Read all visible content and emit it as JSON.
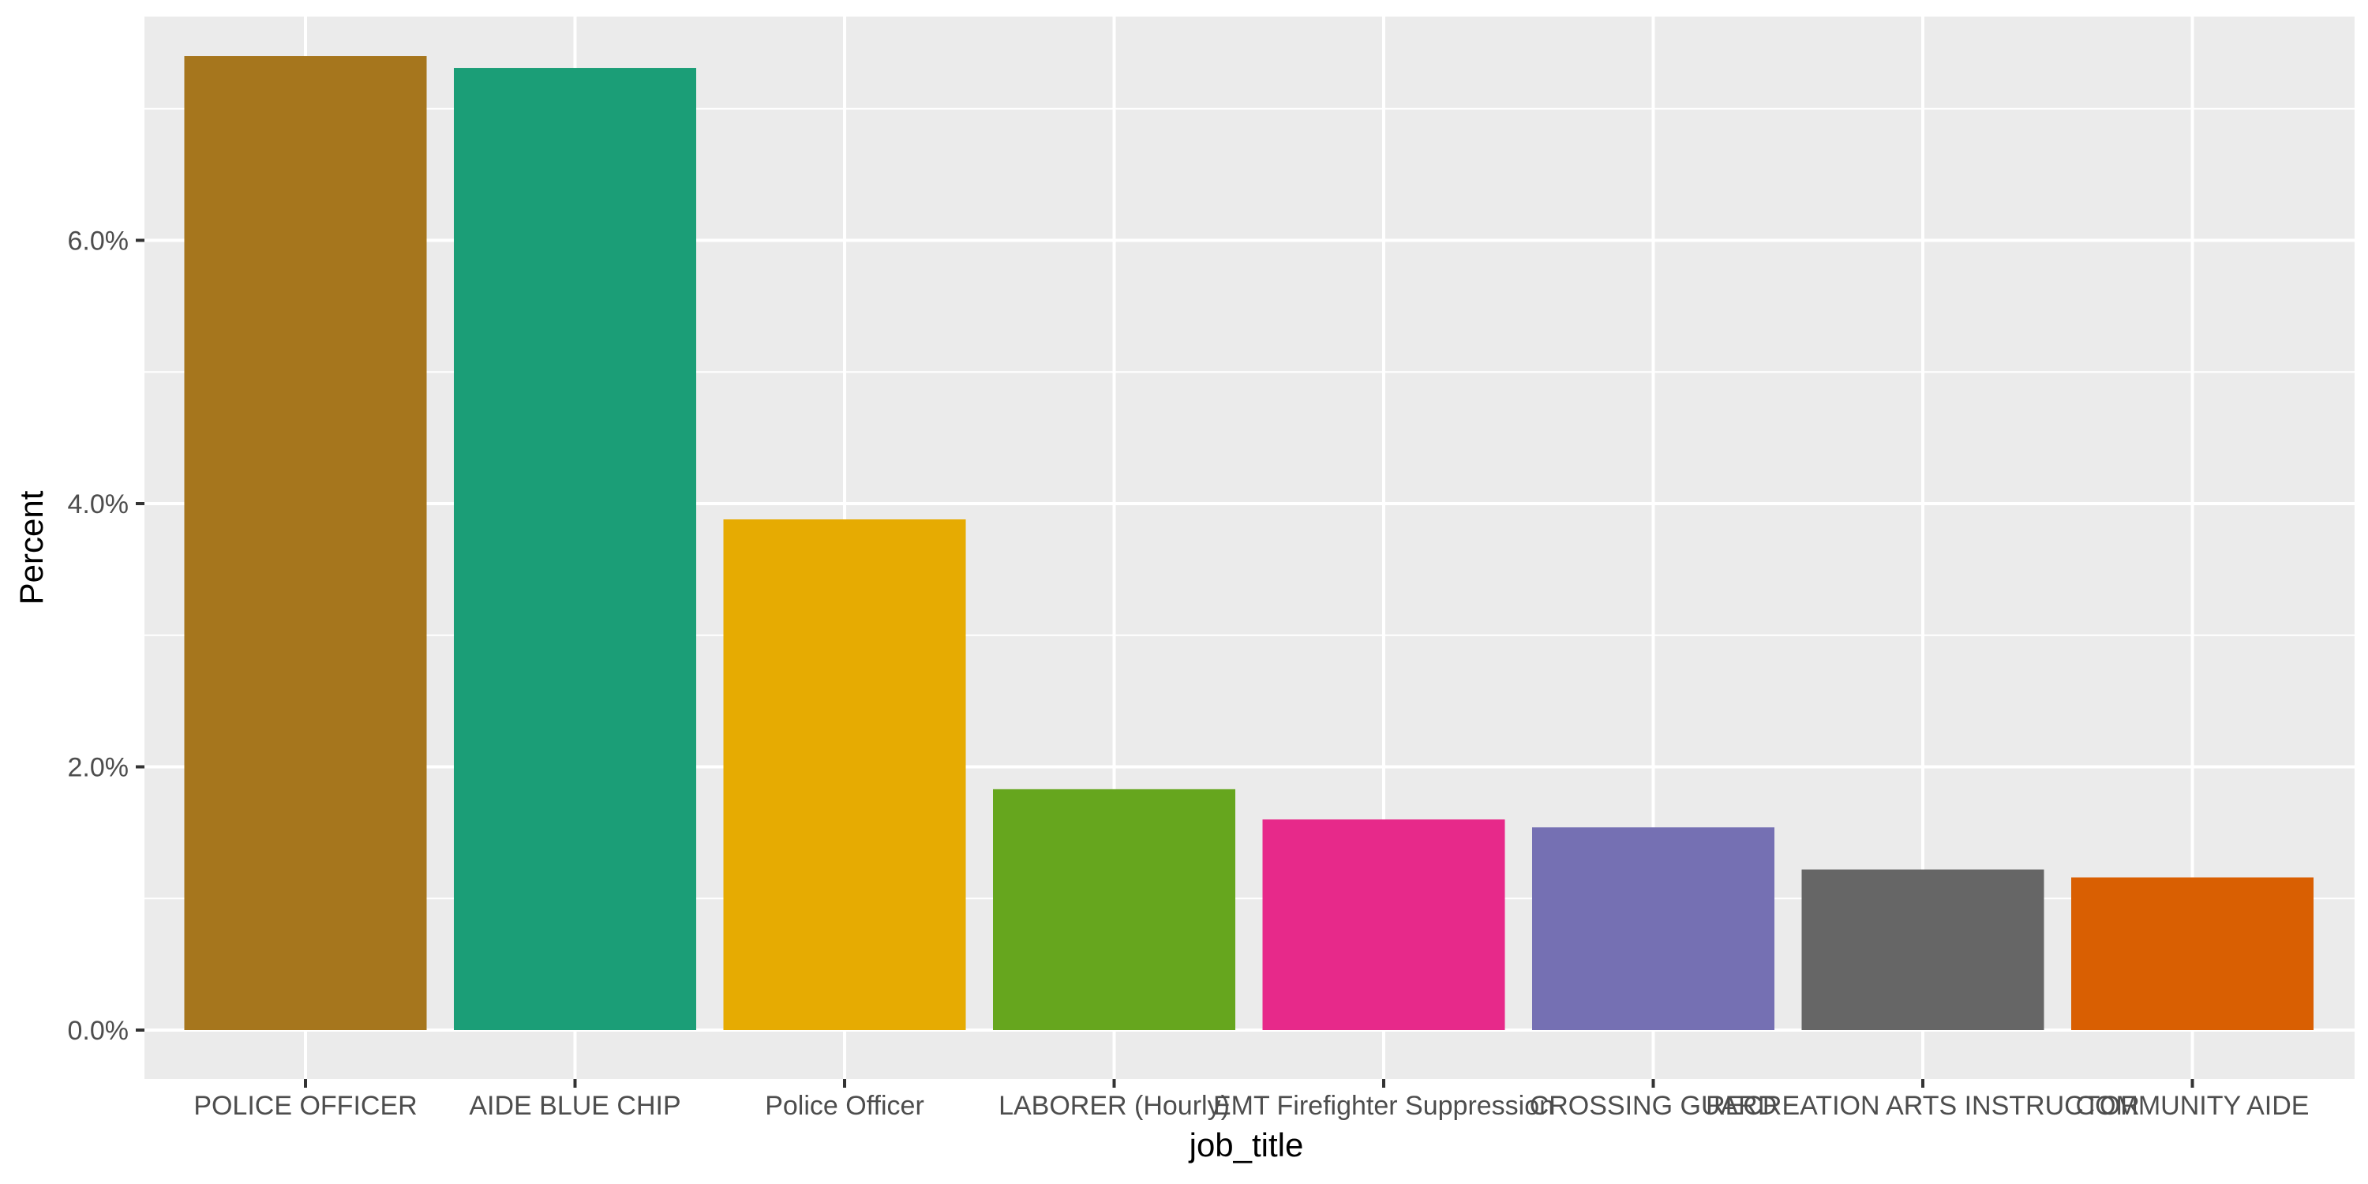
{
  "chart_data": {
    "type": "bar",
    "title": "",
    "xlabel": "job_title",
    "ylabel": "Percent",
    "ylim": [
      0,
      0.077
    ],
    "y_ticks": [
      0.0,
      0.02,
      0.04,
      0.06
    ],
    "y_tick_labels": [
      "0.0%",
      "2.0%",
      "4.0%",
      "6.0%"
    ],
    "grid": true,
    "legend": "none",
    "categories": [
      "POLICE OFFICER",
      "AIDE BLUE CHIP",
      "Police Officer",
      "LABORER (Hourly)",
      "EMT Firefighter Suppression",
      "CROSSING GUARD",
      "RECREATION ARTS INSTRUCTOR",
      "COMMUNITY AIDE"
    ],
    "values": [
      0.074,
      0.0731,
      0.0388,
      0.0183,
      0.016,
      0.0154,
      0.0122,
      0.0116
    ],
    "colors": [
      "#A6761D",
      "#1B9E77",
      "#E6AB02",
      "#66A61E",
      "#E7298A",
      "#7570B3",
      "#666666",
      "#D95F02"
    ]
  }
}
